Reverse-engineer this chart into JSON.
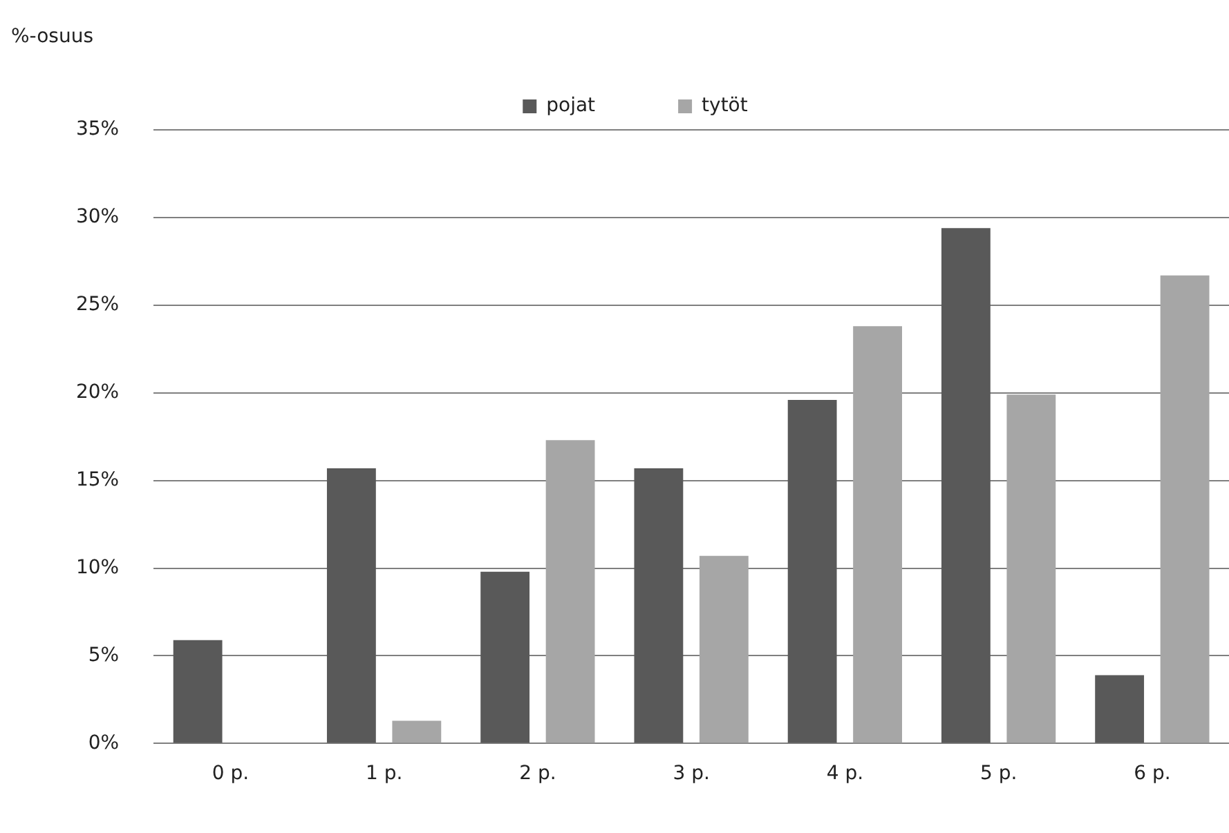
{
  "chart_data": {
    "type": "bar",
    "ylabel": "%-osuus",
    "categories": [
      "0 p.",
      "1 p.",
      "2 p.",
      "3 p.",
      "4 p.",
      "5 p.",
      "6 p."
    ],
    "series": [
      {
        "name": "pojat",
        "color": "#595959",
        "values": [
          5.9,
          15.7,
          9.8,
          15.7,
          19.6,
          29.4,
          3.9
        ]
      },
      {
        "name": "tytöt",
        "color": "#a6a6a6",
        "values": [
          0,
          1.3,
          17.3,
          10.7,
          23.8,
          19.9,
          26.7
        ]
      }
    ],
    "ylim": [
      0,
      35
    ],
    "yticks": [
      {
        "value": 0,
        "label": "0%"
      },
      {
        "value": 5,
        "label": "5%"
      },
      {
        "value": 10,
        "label": "10%"
      },
      {
        "value": 15,
        "label": "15%"
      },
      {
        "value": 20,
        "label": "20%"
      },
      {
        "value": 25,
        "label": "25%"
      },
      {
        "value": 30,
        "label": "30%"
      },
      {
        "value": 35,
        "label": "35%"
      }
    ],
    "grid": "y",
    "legend": "top"
  }
}
